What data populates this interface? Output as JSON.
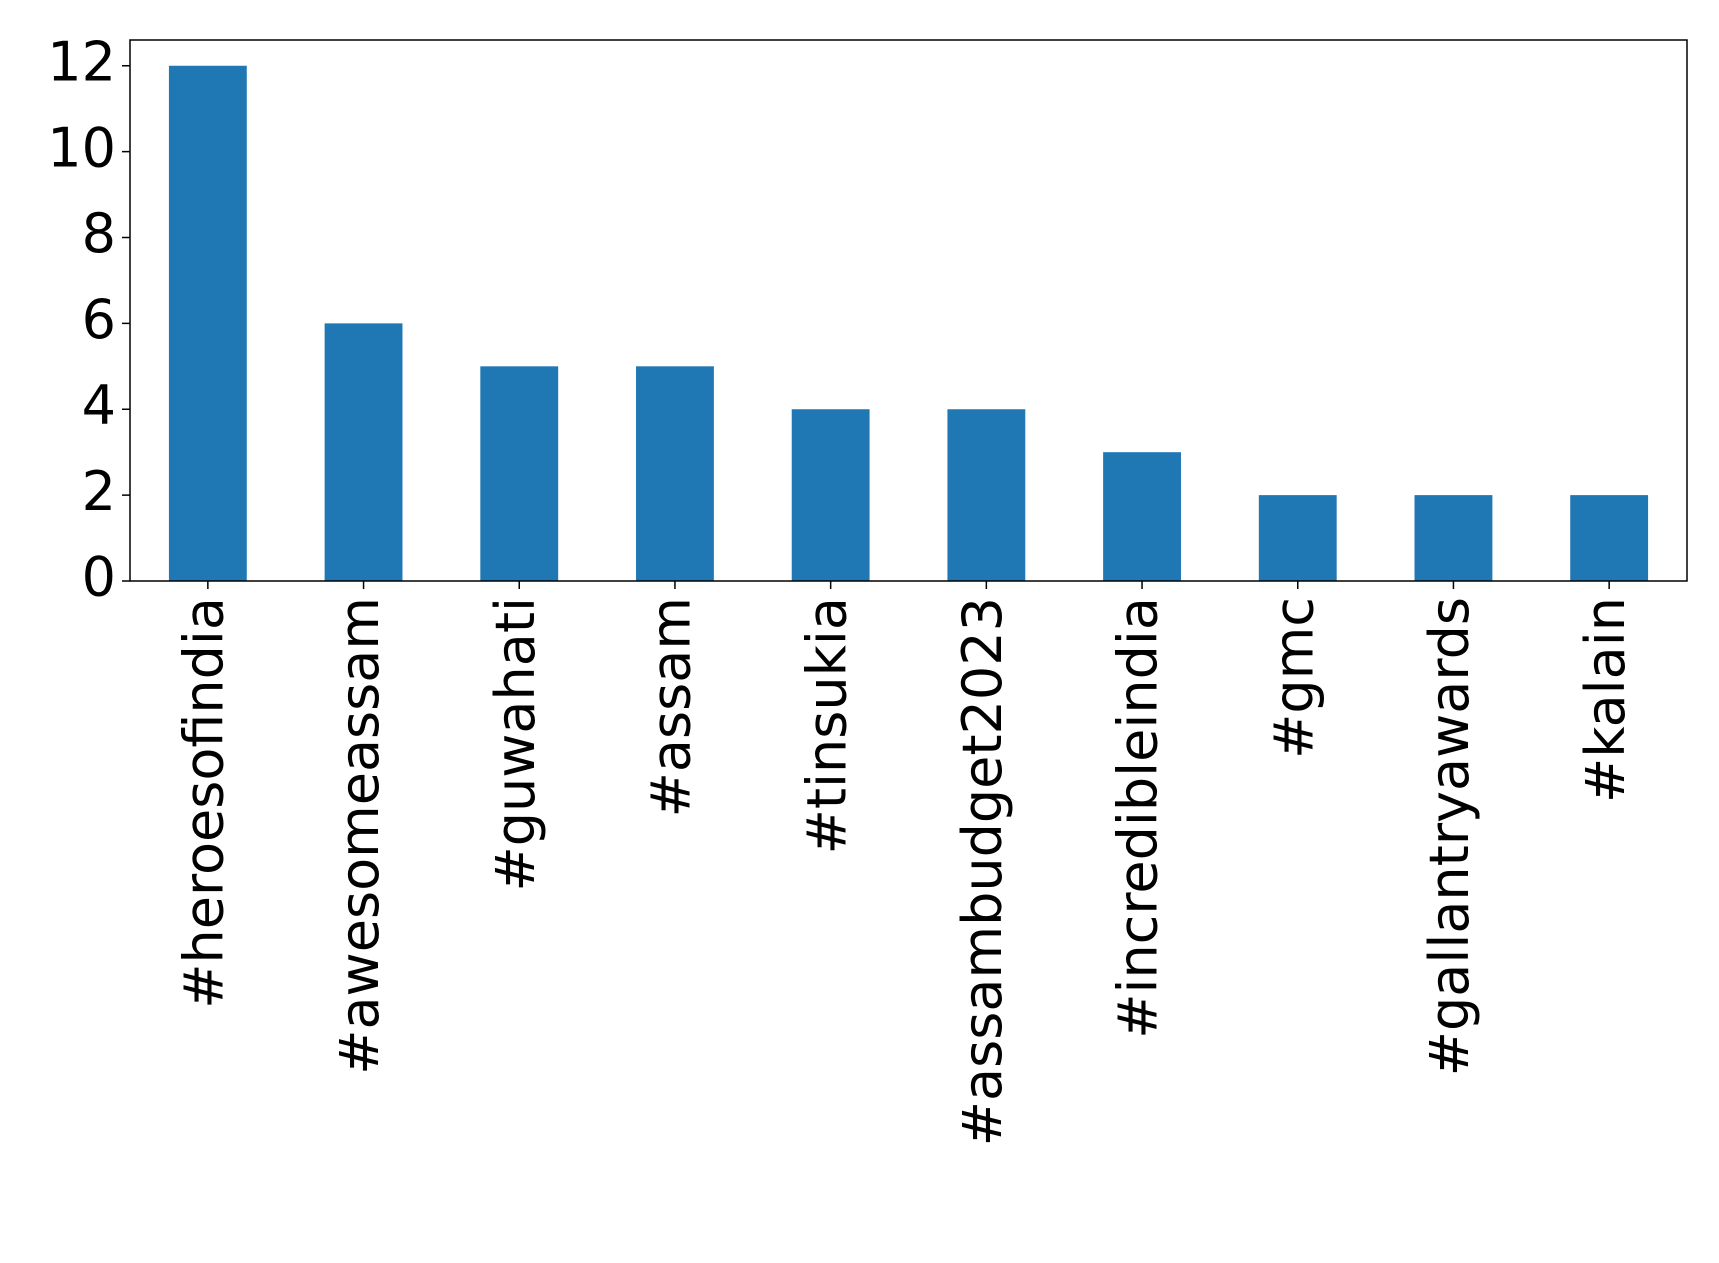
{
  "chart_data": {
    "type": "bar",
    "categories": [
      "#heroesofindia",
      "#awesomeassam",
      "#guwahati",
      "#assam",
      "#tinsukia",
      "#assambudget2023",
      "#incredibleindia",
      "#gmc",
      "#gallantryawards",
      "#kalain"
    ],
    "values": [
      12,
      6,
      5,
      5,
      4,
      4,
      3,
      2,
      2,
      2
    ],
    "color": "#1f77b4",
    "ylim": [
      0,
      12.6
    ],
    "yticks": [
      0,
      2,
      4,
      6,
      8,
      10,
      12
    ],
    "grid": false
  }
}
